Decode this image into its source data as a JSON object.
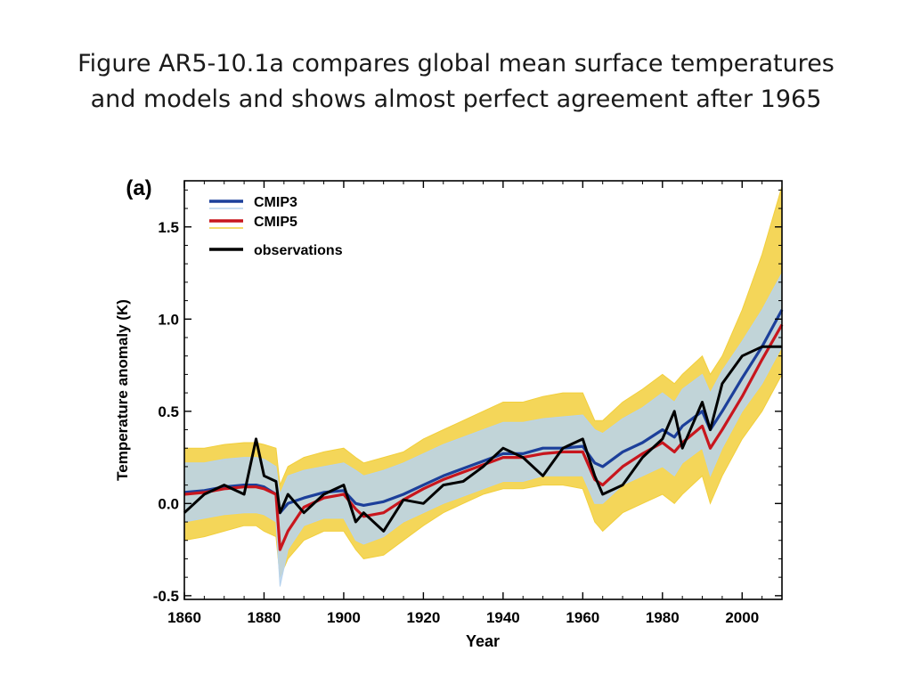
{
  "slide": {
    "title_line1": "Figure AR5-10.1a compares global mean surface temperatures",
    "title_line2": "and models and shows almost perfect agreement after 1965"
  },
  "chart_data": {
    "type": "line",
    "panel_label": "(a)",
    "xlabel": "Year",
    "ylabel": "Temperature anomaly (K)",
    "xlim": [
      1860,
      2010
    ],
    "ylim": [
      -0.52,
      1.75
    ],
    "xticks": [
      1860,
      1880,
      1900,
      1920,
      1940,
      1960,
      1980,
      2000
    ],
    "xtick_labels": [
      "1860",
      "1880",
      "1900",
      "1920",
      "1940",
      "1960",
      "1980",
      "2000"
    ],
    "yticks": [
      -0.5,
      0.0,
      0.5,
      1.0,
      1.5
    ],
    "ytick_labels": [
      "-0.5",
      "0.0",
      "0.5",
      "1.0",
      "1.5"
    ],
    "grid": false,
    "legend_position": "top-left",
    "legend": [
      {
        "label": "CMIP3",
        "color": "#1c3f9a",
        "member_color": "#b7d3ee"
      },
      {
        "label": "CMIP5",
        "color": "#c8161d",
        "member_color": "#f2cf3c"
      },
      {
        "label": "observations",
        "color": "#000000"
      }
    ],
    "x": [
      1860,
      1865,
      1870,
      1875,
      1878,
      1880,
      1883,
      1884,
      1886,
      1890,
      1895,
      1900,
      1903,
      1905,
      1910,
      1915,
      1920,
      1925,
      1930,
      1935,
      1940,
      1945,
      1950,
      1955,
      1960,
      1963,
      1965,
      1970,
      1975,
      1980,
      1983,
      1985,
      1990,
      1992,
      1995,
      2000,
      2005,
      2010
    ],
    "series": [
      {
        "name": "CMIP3",
        "color": "#1c3f9a",
        "values": [
          0.06,
          0.07,
          0.09,
          0.1,
          0.1,
          0.09,
          0.05,
          -0.05,
          0.0,
          0.03,
          0.06,
          0.07,
          0.0,
          -0.01,
          0.01,
          0.05,
          0.1,
          0.15,
          0.19,
          0.23,
          0.27,
          0.27,
          0.3,
          0.3,
          0.31,
          0.22,
          0.2,
          0.28,
          0.33,
          0.4,
          0.36,
          0.42,
          0.5,
          0.4,
          0.5,
          0.68,
          0.85,
          1.05
        ]
      },
      {
        "name": "CMIP5",
        "color": "#c8161d",
        "values": [
          0.05,
          0.06,
          0.08,
          0.09,
          0.09,
          0.08,
          0.05,
          -0.25,
          -0.15,
          -0.02,
          0.03,
          0.05,
          -0.03,
          -0.07,
          -0.05,
          0.02,
          0.08,
          0.13,
          0.17,
          0.21,
          0.25,
          0.25,
          0.27,
          0.28,
          0.28,
          0.13,
          0.1,
          0.2,
          0.27,
          0.33,
          0.28,
          0.33,
          0.42,
          0.3,
          0.4,
          0.58,
          0.78,
          0.97
        ]
      },
      {
        "name": "observations",
        "color": "#000000",
        "values": [
          -0.05,
          0.05,
          0.1,
          0.05,
          0.35,
          0.15,
          0.12,
          -0.05,
          0.05,
          -0.05,
          0.05,
          0.1,
          -0.1,
          -0.05,
          -0.15,
          0.02,
          0.0,
          0.1,
          0.12,
          0.2,
          0.3,
          0.25,
          0.15,
          0.3,
          0.35,
          0.15,
          0.05,
          0.1,
          0.25,
          0.35,
          0.5,
          0.3,
          0.55,
          0.4,
          0.65,
          0.8,
          0.85,
          0.85
        ]
      }
    ],
    "ensemble_ranges": [
      {
        "name": "CMIP5 range",
        "color": "#f2cf3c",
        "lower": [
          -0.2,
          -0.18,
          -0.15,
          -0.12,
          -0.12,
          -0.15,
          -0.18,
          -0.4,
          -0.3,
          -0.2,
          -0.15,
          -0.15,
          -0.25,
          -0.3,
          -0.28,
          -0.2,
          -0.12,
          -0.05,
          0.0,
          0.05,
          0.08,
          0.08,
          0.1,
          0.1,
          0.08,
          -0.1,
          -0.15,
          -0.05,
          0.0,
          0.05,
          0.0,
          0.05,
          0.15,
          0.0,
          0.15,
          0.35,
          0.5,
          0.7
        ],
        "upper": [
          0.3,
          0.3,
          0.32,
          0.33,
          0.33,
          0.32,
          0.3,
          0.1,
          0.2,
          0.25,
          0.28,
          0.3,
          0.25,
          0.22,
          0.25,
          0.28,
          0.35,
          0.4,
          0.45,
          0.5,
          0.55,
          0.55,
          0.58,
          0.6,
          0.6,
          0.45,
          0.45,
          0.55,
          0.62,
          0.7,
          0.65,
          0.7,
          0.8,
          0.7,
          0.8,
          1.05,
          1.35,
          1.72
        ]
      },
      {
        "name": "CMIP3 range",
        "color": "#b7d3ee",
        "lower": [
          -0.1,
          -0.08,
          -0.06,
          -0.05,
          -0.05,
          -0.06,
          -0.1,
          -0.45,
          -0.25,
          -0.12,
          -0.08,
          -0.08,
          -0.2,
          -0.22,
          -0.18,
          -0.1,
          -0.05,
          0.0,
          0.04,
          0.08,
          0.12,
          0.12,
          0.15,
          0.15,
          0.15,
          0.0,
          0.0,
          0.1,
          0.15,
          0.2,
          0.15,
          0.22,
          0.3,
          0.15,
          0.3,
          0.5,
          0.65,
          0.85
        ],
        "upper": [
          0.22,
          0.22,
          0.24,
          0.25,
          0.25,
          0.24,
          0.2,
          0.05,
          0.15,
          0.18,
          0.2,
          0.22,
          0.18,
          0.15,
          0.18,
          0.22,
          0.27,
          0.32,
          0.36,
          0.4,
          0.44,
          0.44,
          0.46,
          0.47,
          0.48,
          0.4,
          0.38,
          0.46,
          0.52,
          0.6,
          0.55,
          0.62,
          0.7,
          0.6,
          0.72,
          0.88,
          1.05,
          1.25
        ]
      }
    ],
    "colors": {
      "frame": "#000000",
      "cmip3_member": "#b7d3ee",
      "cmip5_member": "#f2cf3c"
    }
  }
}
